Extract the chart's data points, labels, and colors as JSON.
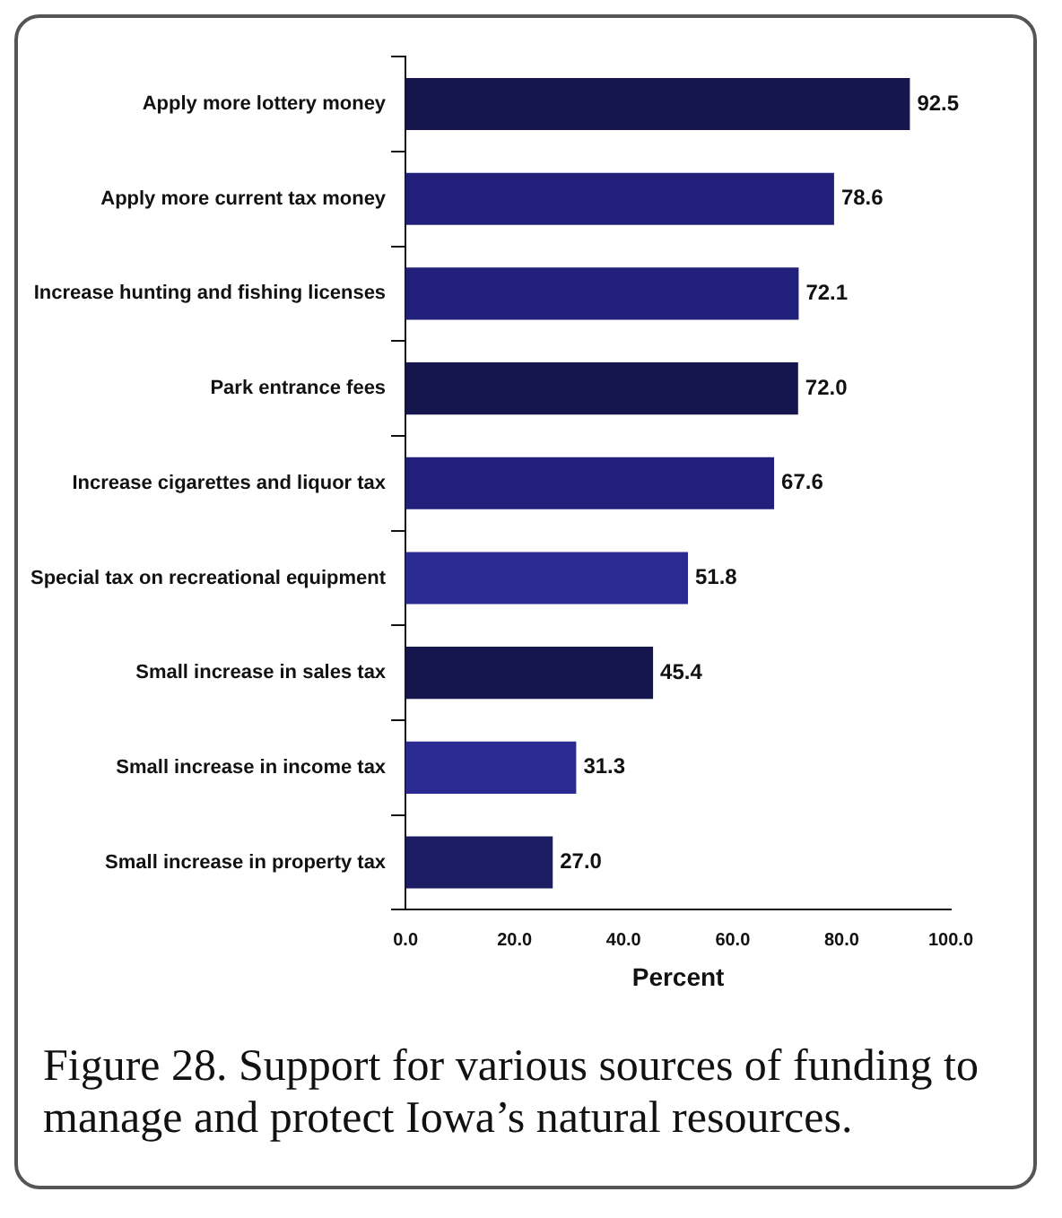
{
  "chart_data": {
    "type": "bar",
    "orientation": "horizontal",
    "categories": [
      "Apply more lottery money",
      "Apply more current tax money",
      "Increase hunting and fishing licenses",
      "Park entrance fees",
      "Increase cigarettes and liquor tax",
      "Special tax on recreational equipment",
      "Small increase in sales tax",
      "Small increase in income tax",
      "Small increase in property tax"
    ],
    "values": [
      92.5,
      78.6,
      72.1,
      72.0,
      67.6,
      51.8,
      45.4,
      31.3,
      27.0
    ],
    "value_labels": [
      "92.5",
      "78.6",
      "72.1",
      "72.0",
      "67.6",
      "51.8",
      "45.4",
      "31.3",
      "27.0"
    ],
    "colors": [
      "#16164f",
      "#20207a",
      "#20207a",
      "#16164f",
      "#20207a",
      "#2a2a92",
      "#16164f",
      "#2a2a92",
      "#1c1c62"
    ],
    "xlabel": "Percent",
    "xlim": [
      0,
      100
    ],
    "xticks": [
      {
        "value": 0,
        "label": "0.0"
      },
      {
        "value": 20,
        "label": "20.0"
      },
      {
        "value": 40,
        "label": "40.0"
      },
      {
        "value": 60,
        "label": "60.0"
      },
      {
        "value": 80,
        "label": "80.0"
      },
      {
        "value": 100,
        "label": "100.0"
      }
    ],
    "grid": false,
    "legend": false,
    "annotations": [
      "Figure 28. Support for various sources of funding to manage and protect Iowa’s natural resources."
    ]
  }
}
